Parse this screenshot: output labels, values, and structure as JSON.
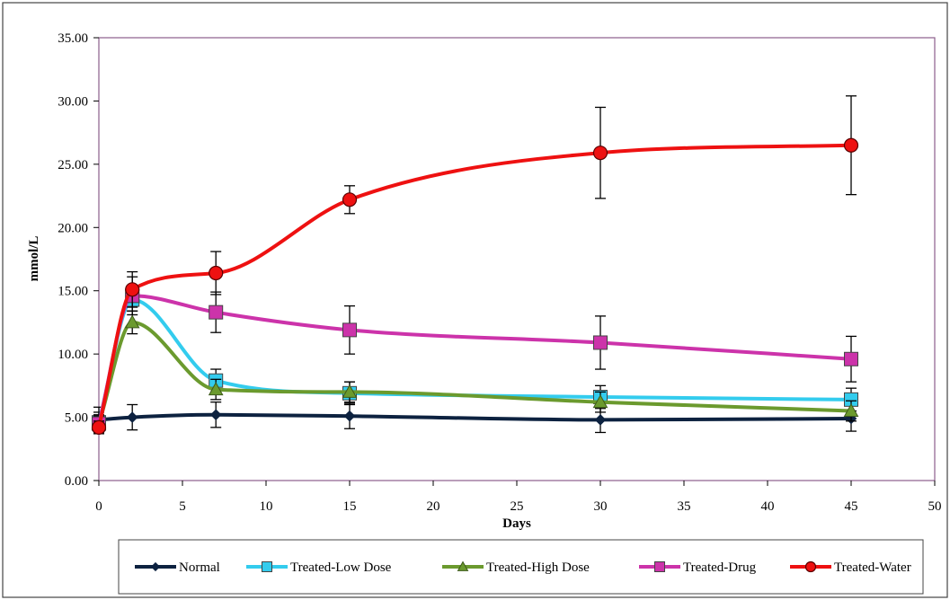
{
  "chart_data": {
    "type": "line",
    "title": "",
    "xlabel": "Days",
    "ylabel": "mmol/L",
    "xlim": [
      0,
      50
    ],
    "ylim": [
      0,
      35
    ],
    "x_ticks": [
      "0",
      "5",
      "10",
      "15",
      "20",
      "25",
      "30",
      "35",
      "40",
      "45",
      "50"
    ],
    "y_ticks": [
      "0.00",
      "5.00",
      "10.00",
      "15.00",
      "20.00",
      "25.00",
      "30.00",
      "35.00"
    ],
    "grid": false,
    "legend_position": "bottom",
    "x": [
      0,
      2,
      7,
      15,
      30,
      45
    ],
    "series": [
      {
        "name": "Normal",
        "color": "#0d2240",
        "marker": "diamond",
        "values": [
          4.8,
          5.0,
          5.2,
          5.1,
          4.8,
          4.9
        ],
        "errors": [
          1.0,
          1.0,
          1.0,
          1.0,
          1.0,
          1.0
        ]
      },
      {
        "name": "Treated-Low Dose",
        "color": "#33ccee",
        "marker": "square",
        "values": [
          4.6,
          14.3,
          7.9,
          6.9,
          6.6,
          6.4
        ],
        "errors": [
          0.8,
          0.9,
          0.9,
          0.9,
          0.9,
          0.9
        ]
      },
      {
        "name": "Treated-High Dose",
        "color": "#6b9a2e",
        "marker": "triangle",
        "values": [
          4.5,
          12.5,
          7.2,
          7.0,
          6.2,
          5.5
        ],
        "errors": [
          0.7,
          0.9,
          0.8,
          0.8,
          0.8,
          0.8
        ]
      },
      {
        "name": "Treated-Drug",
        "color": "#cc33aa",
        "marker": "square",
        "values": [
          4.5,
          14.6,
          13.3,
          11.9,
          10.9,
          9.6
        ],
        "errors": [
          0.6,
          1.5,
          1.6,
          1.9,
          2.1,
          1.8
        ]
      },
      {
        "name": "Treated-Water",
        "color": "#ee1111",
        "marker": "circle",
        "values": [
          4.2,
          15.1,
          16.4,
          22.2,
          25.9,
          26.5
        ],
        "errors": [
          0.5,
          1.4,
          1.7,
          1.1,
          3.6,
          3.9
        ]
      }
    ]
  }
}
